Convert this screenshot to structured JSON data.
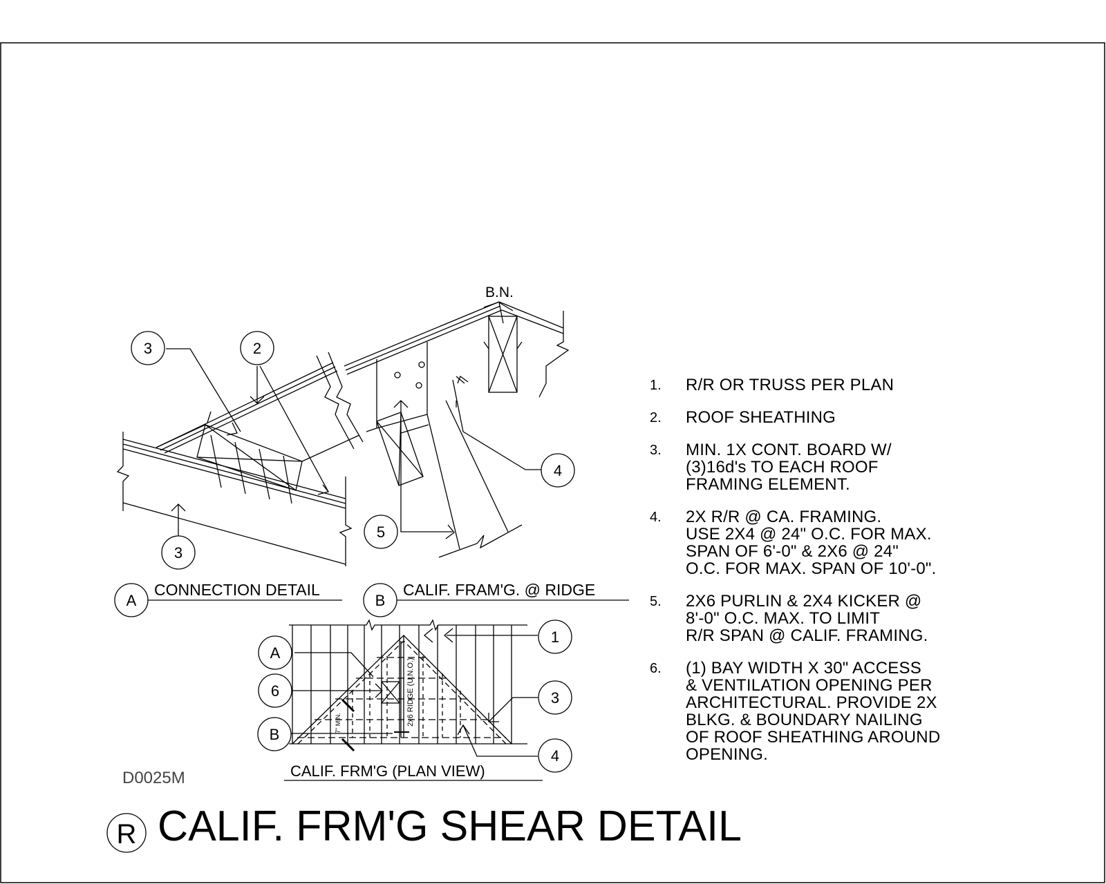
{
  "drawing_code": "D0025M",
  "title": {
    "symbol": "R",
    "text": "CALIF. FRM'G SHEAR DETAIL"
  },
  "details": {
    "a": {
      "key": "A",
      "label": "CONNECTION DETAIL"
    },
    "b": {
      "key": "B",
      "label": "CALIF. FRAM'G. @ RIDGE"
    },
    "plan": {
      "label": "CALIF. FRM'G (PLAN VIEW)"
    }
  },
  "annotations": {
    "bn": "B.N.",
    "ridge_label": "2x6 RIDGE (U.N.O.)",
    "min_label": "7\" MIN."
  },
  "callouts": {
    "a_top_3": "3",
    "a_top_2": "2",
    "a_bottom_3": "3",
    "b_4": "4",
    "b_5": "5",
    "plan_a": "A",
    "plan_6": "6",
    "plan_b": "B",
    "plan_1": "1",
    "plan_3": "3",
    "plan_4": "4"
  },
  "notes": [
    {
      "num": "1.",
      "text": "R/R OR TRUSS PER PLAN"
    },
    {
      "num": "2.",
      "text": "ROOF SHEATHING"
    },
    {
      "num": "3.",
      "text": "MIN. 1X CONT. BOARD W/\n(3)16d's TO EACH ROOF\nFRAMING ELEMENT."
    },
    {
      "num": "4.",
      "text": "2X R/R @ CA. FRAMING.\nUSE 2X4 @ 24\" O.C. FOR MAX.\nSPAN OF 6'-0\" & 2X6 @ 24\"\nO.C. FOR MAX. SPAN OF 10'-0\"."
    },
    {
      "num": "5.",
      "text": "2X6 PURLIN & 2X4 KICKER @\n8'-0\" O.C. MAX. TO LIMIT\nR/R SPAN @ CALIF. FRAMING."
    },
    {
      "num": "6.",
      "text": "(1) BAY WIDTH X 30\" ACCESS\n& VENTILATION OPENING PER\nARCHITECTURAL. PROVIDE 2X\nBLKG. & BOUNDARY NAILING\nOF ROOF SHEATHING AROUND\nOPENING."
    }
  ]
}
